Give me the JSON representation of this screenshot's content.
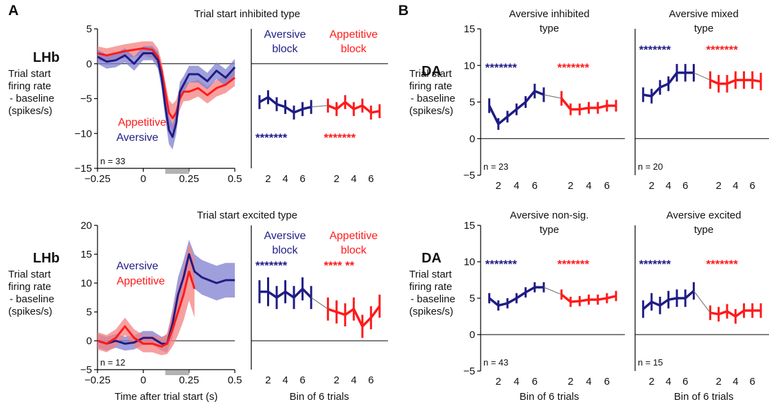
{
  "colors": {
    "aversive": "#1f1c85",
    "appetitive": "#ff1a1a",
    "aversive_fill": "#7f7fd0",
    "appetitive_fill": "#f48080"
  },
  "figure": {
    "panel_a_letter": "A",
    "panel_b_letter": "B",
    "lhb_label": "LHb",
    "da_label": "DA",
    "ylabel_lines": [
      "Trial start",
      "firing rate",
      "- baseline",
      "(spikes/s)"
    ],
    "xlabel_time": "Time after trial start (s)",
    "xlabel_bins": "Bin of 6 trials",
    "aversive_block_lines": [
      "Aversive",
      "block"
    ],
    "appetitive_block_lines": [
      "Appetitive",
      "block"
    ],
    "legend_appetitive": "Appetitive",
    "legend_aversive": "Aversive"
  },
  "chart_data": [
    {
      "id": "lhb_inhibited_timecourse",
      "type": "line",
      "title": "Trial start inhibited type",
      "xlabel": "",
      "ylabel": "Trial start firing rate - baseline (spikes/s)",
      "xlim": [
        -0.25,
        0.5
      ],
      "ylim": [
        -15,
        5
      ],
      "xticks": [
        -0.25,
        0,
        0.25,
        0.5
      ],
      "xtick_labels": [
        "−0.25",
        "0",
        "0.25",
        "0.5"
      ],
      "yticks": [
        -15,
        -10,
        -5,
        0,
        5
      ],
      "ytick_labels": [
        "−15",
        "−10",
        "−5",
        "0",
        "5"
      ],
      "n_label": "n = 33",
      "shaded_interval": [
        0.12,
        0.25
      ],
      "series": [
        {
          "name": "Appetitive",
          "color_key": "appetitive",
          "x": [
            -0.25,
            -0.2,
            -0.15,
            -0.1,
            -0.05,
            0,
            0.05,
            0.08,
            0.1,
            0.12,
            0.14,
            0.16,
            0.18,
            0.2,
            0.22,
            0.25,
            0.3,
            0.35,
            0.4,
            0.45,
            0.5
          ],
          "y": [
            1.5,
            1.2,
            1.5,
            1.8,
            2.0,
            2.2,
            2.0,
            1.0,
            -1.0,
            -4.0,
            -7.0,
            -7.8,
            -7.0,
            -5.0,
            -4.0,
            -4.0,
            -3.5,
            -4.5,
            -3.5,
            -3.0,
            -2.0
          ],
          "ci": [
            1.0,
            1.0,
            1.0,
            1.0,
            1.0,
            1.0,
            1.2,
            1.2,
            1.4,
            1.5,
            1.8,
            2.0,
            1.8,
            1.6,
            1.4,
            1.3,
            1.2,
            1.2,
            1.2,
            1.2,
            1.2
          ]
        },
        {
          "name": "Aversive",
          "color_key": "aversive",
          "x": [
            -0.25,
            -0.2,
            -0.15,
            -0.1,
            -0.05,
            0,
            0.05,
            0.08,
            0.1,
            0.12,
            0.14,
            0.16,
            0.18,
            0.2,
            0.22,
            0.25,
            0.3,
            0.35,
            0.4,
            0.45,
            0.5
          ],
          "y": [
            1.0,
            0.3,
            0.5,
            1.2,
            0.0,
            1.5,
            1.5,
            0.5,
            -2.0,
            -6.0,
            -9.5,
            -10.5,
            -8.5,
            -4.0,
            -3.0,
            -1.5,
            -1.5,
            -2.5,
            -1.0,
            -2.0,
            -0.5
          ],
          "ci": [
            1.0,
            1.0,
            1.0,
            1.0,
            1.0,
            1.0,
            1.0,
            1.2,
            1.5,
            1.8,
            2.0,
            1.8,
            1.6,
            1.4,
            1.2,
            1.2,
            1.2,
            1.2,
            1.2,
            1.2,
            1.2
          ]
        }
      ]
    },
    {
      "id": "lhb_inhibited_bins",
      "type": "line",
      "xlabel": "",
      "ylim": [
        -15,
        5
      ],
      "xtick_labels": [
        "2",
        "4",
        "6",
        "2",
        "4",
        "6"
      ],
      "stars": {
        "aversive": "*******",
        "appetitive": "*******"
      },
      "series": [
        {
          "name": "Aversive block",
          "color_key": "aversive",
          "x": [
            1,
            2,
            3,
            4,
            5,
            6,
            7
          ],
          "y": [
            -5.5,
            -4.8,
            -5.8,
            -6.2,
            -7.0,
            -6.5,
            -6.2
          ],
          "err": [
            1.0,
            1.0,
            1.0,
            1.0,
            1.0,
            1.0,
            1.0
          ]
        },
        {
          "name": "Appetitive block",
          "color_key": "appetitive",
          "x": [
            1,
            2,
            3,
            4,
            5,
            6,
            7
          ],
          "y": [
            -6.0,
            -6.5,
            -5.5,
            -6.5,
            -6.0,
            -7.0,
            -6.8
          ],
          "err": [
            1.0,
            1.0,
            1.0,
            1.0,
            1.0,
            1.0,
            1.0
          ]
        }
      ]
    },
    {
      "id": "lhb_excited_timecourse",
      "type": "line",
      "title": "Trial start excited type",
      "xlabel": "Time after trial start (s)",
      "ylabel": "Trial start firing rate - baseline (spikes/s)",
      "xlim": [
        -0.25,
        0.5
      ],
      "ylim": [
        -5,
        20
      ],
      "xticks": [
        -0.25,
        0,
        0.25,
        0.5
      ],
      "xtick_labels": [
        "−0.25",
        "0",
        "0.25",
        "0.5"
      ],
      "yticks": [
        -5,
        0,
        5,
        10,
        15,
        20
      ],
      "ytick_labels": [
        "−5",
        "0",
        "5",
        "10",
        "15",
        "20"
      ],
      "n_label": "n = 12",
      "shaded_interval": [
        0.12,
        0.25
      ],
      "series": [
        {
          "name": "Aversive",
          "color_key": "aversive",
          "x": [
            -0.25,
            -0.2,
            -0.15,
            -0.1,
            -0.05,
            0,
            0.05,
            0.1,
            0.13,
            0.16,
            0.19,
            0.22,
            0.25,
            0.28,
            0.32,
            0.36,
            0.4,
            0.45,
            0.5
          ],
          "y": [
            0.0,
            -0.5,
            0.0,
            -0.5,
            -0.3,
            0.5,
            0.5,
            -0.5,
            -0.5,
            3.0,
            8.0,
            11.0,
            15.0,
            12.0,
            11.0,
            10.5,
            10.0,
            10.5,
            10.5
          ],
          "ci": [
            1.2,
            1.2,
            1.2,
            1.2,
            1.2,
            1.2,
            1.2,
            1.2,
            1.5,
            2.5,
            3.0,
            3.0,
            2.5,
            3.0,
            3.0,
            3.0,
            3.0,
            3.0,
            3.0
          ]
        },
        {
          "name": "Appetitive",
          "color_key": "appetitive",
          "x": [
            -0.25,
            -0.2,
            -0.15,
            -0.1,
            -0.05,
            0,
            0.05,
            0.1,
            0.13,
            0.16,
            0.19,
            0.22,
            0.25,
            0.28
          ],
          "y": [
            0.0,
            -0.5,
            0.5,
            2.5,
            0.5,
            -0.5,
            -0.5,
            -1.0,
            -0.5,
            2.0,
            5.0,
            8.0,
            12.0,
            9.0
          ],
          "ci": [
            1.5,
            1.5,
            1.5,
            1.5,
            1.5,
            1.5,
            1.5,
            1.5,
            1.8,
            3.0,
            4.0,
            4.5,
            5.0,
            5.0
          ]
        }
      ]
    },
    {
      "id": "lhb_excited_bins",
      "type": "line",
      "xlabel": "Bin of 6 trials",
      "ylim": [
        -5,
        20
      ],
      "xtick_labels": [
        "2",
        "4",
        "6",
        "2",
        "4",
        "6"
      ],
      "stars": {
        "aversive": "*******",
        "appetitive": "****   **"
      },
      "series": [
        {
          "name": "Aversive block",
          "color_key": "aversive",
          "x": [
            1,
            2,
            3,
            4,
            5,
            6,
            7
          ],
          "y": [
            8.5,
            8.5,
            7.5,
            8.5,
            7.5,
            9.0,
            7.5
          ],
          "err": [
            2.0,
            2.5,
            2.0,
            2.0,
            2.0,
            2.0,
            2.0
          ]
        },
        {
          "name": "Appetitive block",
          "color_key": "appetitive",
          "x": [
            1,
            2,
            3,
            4,
            5,
            6,
            7
          ],
          "y": [
            5.5,
            5.0,
            4.5,
            5.5,
            2.5,
            4.0,
            6.0
          ],
          "err": [
            2.0,
            2.0,
            2.0,
            2.0,
            2.0,
            2.0,
            2.0
          ]
        }
      ]
    },
    {
      "id": "da_aversive_inhibited",
      "type": "line",
      "title": "Aversive inhibited type",
      "ylim": [
        -5,
        15
      ],
      "yticks": [
        -5,
        0,
        5,
        10,
        15
      ],
      "ytick_labels": [
        "−5",
        "0",
        "5",
        "10",
        "15"
      ],
      "xtick_labels": [
        "2",
        "4",
        "6",
        "2",
        "4",
        "6"
      ],
      "n_label": "n = 23",
      "stars": {
        "aversive": "*******",
        "appetitive": "*******"
      },
      "series": [
        {
          "name": "Aversive block",
          "color_key": "aversive",
          "x": [
            1,
            2,
            3,
            4,
            5,
            6,
            7
          ],
          "y": [
            4.5,
            2.0,
            3.0,
            4.0,
            5.0,
            6.5,
            6.0
          ],
          "err": [
            1.0,
            0.8,
            0.8,
            0.8,
            0.8,
            1.0,
            1.0
          ]
        },
        {
          "name": "Appetitive block",
          "color_key": "appetitive",
          "x": [
            1,
            2,
            3,
            4,
            5,
            6,
            7
          ],
          "y": [
            5.5,
            4.0,
            4.0,
            4.2,
            4.2,
            4.5,
            4.5
          ],
          "err": [
            1.0,
            0.8,
            0.8,
            0.8,
            0.8,
            0.8,
            0.8
          ]
        }
      ]
    },
    {
      "id": "da_aversive_mixed",
      "type": "line",
      "title": "Aversive mixed type",
      "ylim": [
        -5,
        15
      ],
      "xtick_labels": [
        "2",
        "4",
        "6",
        "2",
        "4",
        "6"
      ],
      "n_label": "n = 20",
      "stars": {
        "aversive": "*******",
        "appetitive": "*******"
      },
      "series": [
        {
          "name": "Aversive block",
          "color_key": "aversive",
          "x": [
            1,
            2,
            3,
            4,
            5,
            6,
            7
          ],
          "y": [
            6.0,
            5.8,
            7.0,
            7.5,
            9.0,
            9.0,
            9.0
          ],
          "err": [
            1.0,
            1.0,
            1.0,
            1.0,
            1.2,
            1.2,
            1.2
          ]
        },
        {
          "name": "Appetitive block",
          "color_key": "appetitive",
          "x": [
            1,
            2,
            3,
            4,
            5,
            6,
            7
          ],
          "y": [
            8.0,
            7.5,
            7.5,
            8.0,
            8.0,
            8.0,
            7.8
          ],
          "err": [
            1.2,
            1.2,
            1.2,
            1.2,
            1.2,
            1.2,
            1.2
          ]
        }
      ]
    },
    {
      "id": "da_aversive_nonsig",
      "type": "line",
      "title": "Aversive non-sig. type",
      "ylim": [
        -5,
        15
      ],
      "yticks": [
        -5,
        0,
        5,
        10,
        15
      ],
      "ytick_labels": [
        "−5",
        "0",
        "5",
        "10",
        "15"
      ],
      "xtick_labels": [
        "2",
        "4",
        "6",
        "2",
        "4",
        "6"
      ],
      "xlabel": "Bin of 6 trials",
      "n_label": "n = 43",
      "stars": {
        "aversive": "*******",
        "appetitive": "*******"
      },
      "series": [
        {
          "name": "Aversive block",
          "color_key": "aversive",
          "x": [
            1,
            2,
            3,
            4,
            5,
            6,
            7
          ],
          "y": [
            5.0,
            4.0,
            4.3,
            5.0,
            5.8,
            6.5,
            6.5
          ],
          "err": [
            0.7,
            0.7,
            0.7,
            0.7,
            0.7,
            0.7,
            0.7
          ]
        },
        {
          "name": "Appetitive block",
          "color_key": "appetitive",
          "x": [
            1,
            2,
            3,
            4,
            5,
            6,
            7
          ],
          "y": [
            5.5,
            4.5,
            4.6,
            4.8,
            4.8,
            5.0,
            5.3
          ],
          "err": [
            0.7,
            0.7,
            0.7,
            0.7,
            0.7,
            0.7,
            0.7
          ]
        }
      ]
    },
    {
      "id": "da_aversive_excited",
      "type": "line",
      "title": "Aversive excited type",
      "ylim": [
        -5,
        15
      ],
      "xtick_labels": [
        "2",
        "4",
        "6",
        "2",
        "4",
        "6"
      ],
      "xlabel": "Bin of 6 trials",
      "n_label": "n = 15",
      "stars": {
        "aversive": "*******",
        "appetitive": "*******"
      },
      "series": [
        {
          "name": "Aversive block",
          "color_key": "aversive",
          "x": [
            1,
            2,
            3,
            4,
            5,
            6,
            7
          ],
          "y": [
            3.5,
            4.5,
            4.0,
            4.8,
            5.0,
            5.0,
            6.0
          ],
          "err": [
            1.2,
            1.2,
            1.2,
            1.2,
            1.2,
            1.2,
            1.2
          ]
        },
        {
          "name": "Appetitive block",
          "color_key": "appetitive",
          "x": [
            1,
            2,
            3,
            4,
            5,
            6,
            7
          ],
          "y": [
            3.0,
            2.8,
            3.2,
            2.5,
            3.3,
            3.3,
            3.3
          ],
          "err": [
            1.0,
            1.0,
            1.0,
            1.0,
            1.0,
            1.0,
            1.0
          ]
        }
      ]
    }
  ]
}
